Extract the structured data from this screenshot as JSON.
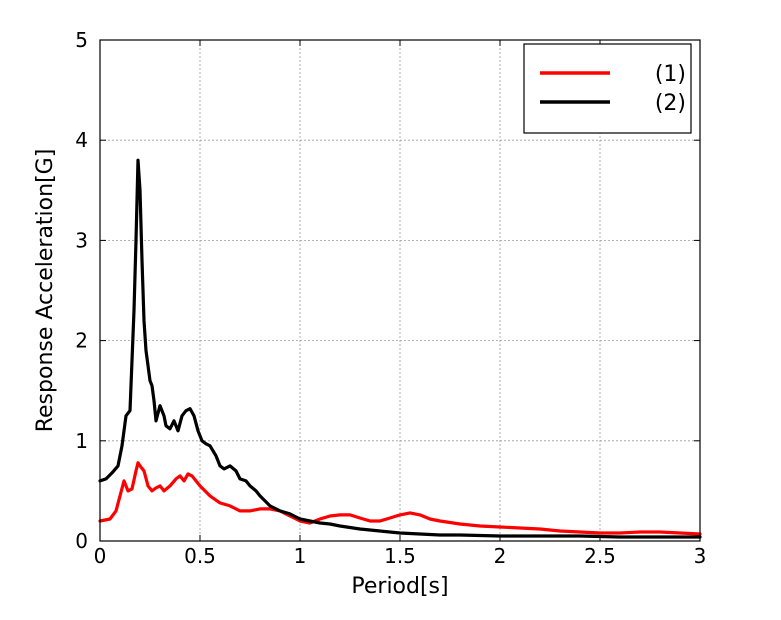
{
  "chart_data": {
    "type": "line",
    "title": "",
    "xlabel": "Period[s]",
    "ylabel": "Response Acceleration[G]",
    "xlim": [
      0,
      3
    ],
    "ylim": [
      0,
      5
    ],
    "xticks": [
      0,
      0.5,
      1,
      1.5,
      2,
      2.5,
      3
    ],
    "xtick_labels": [
      "0",
      "0.5",
      "1",
      "1.5",
      "2",
      "2.5",
      "3"
    ],
    "yticks": [
      0,
      1,
      2,
      3,
      4,
      5
    ],
    "ytick_labels": [
      "0",
      "1",
      "2",
      "3",
      "4",
      "5"
    ],
    "grid": true,
    "legend_position": "top-right",
    "series": [
      {
        "name": "(1)",
        "color": "#ff0000",
        "x": [
          0,
          0.05,
          0.08,
          0.1,
          0.12,
          0.14,
          0.16,
          0.18,
          0.19,
          0.2,
          0.22,
          0.24,
          0.26,
          0.28,
          0.3,
          0.32,
          0.35,
          0.38,
          0.4,
          0.42,
          0.44,
          0.46,
          0.48,
          0.5,
          0.55,
          0.6,
          0.65,
          0.7,
          0.75,
          0.8,
          0.85,
          0.9,
          0.95,
          1.0,
          1.05,
          1.1,
          1.15,
          1.2,
          1.25,
          1.3,
          1.35,
          1.4,
          1.45,
          1.5,
          1.55,
          1.6,
          1.65,
          1.7,
          1.8,
          1.9,
          2.0,
          2.1,
          2.2,
          2.3,
          2.4,
          2.5,
          2.6,
          2.7,
          2.8,
          2.9,
          3.0
        ],
        "y": [
          0.2,
          0.22,
          0.3,
          0.45,
          0.6,
          0.5,
          0.52,
          0.7,
          0.78,
          0.75,
          0.7,
          0.55,
          0.5,
          0.53,
          0.55,
          0.5,
          0.55,
          0.62,
          0.65,
          0.6,
          0.67,
          0.65,
          0.6,
          0.55,
          0.45,
          0.38,
          0.35,
          0.3,
          0.3,
          0.32,
          0.32,
          0.3,
          0.25,
          0.2,
          0.18,
          0.22,
          0.25,
          0.26,
          0.26,
          0.23,
          0.2,
          0.2,
          0.23,
          0.26,
          0.28,
          0.26,
          0.22,
          0.2,
          0.17,
          0.15,
          0.14,
          0.13,
          0.12,
          0.1,
          0.09,
          0.08,
          0.08,
          0.09,
          0.09,
          0.08,
          0.07
        ]
      },
      {
        "name": "(2)",
        "color": "#000000",
        "x": [
          0,
          0.03,
          0.06,
          0.09,
          0.11,
          0.13,
          0.15,
          0.16,
          0.17,
          0.18,
          0.19,
          0.2,
          0.21,
          0.22,
          0.23,
          0.24,
          0.25,
          0.26,
          0.27,
          0.28,
          0.3,
          0.32,
          0.33,
          0.35,
          0.37,
          0.39,
          0.41,
          0.43,
          0.45,
          0.47,
          0.49,
          0.51,
          0.53,
          0.55,
          0.58,
          0.6,
          0.62,
          0.65,
          0.68,
          0.7,
          0.73,
          0.75,
          0.78,
          0.8,
          0.85,
          0.9,
          0.95,
          1.0,
          1.05,
          1.1,
          1.15,
          1.2,
          1.3,
          1.4,
          1.5,
          1.6,
          1.7,
          1.8,
          2.0,
          2.2,
          2.4,
          2.6,
          2.8,
          3.0
        ],
        "y": [
          0.6,
          0.62,
          0.68,
          0.75,
          0.95,
          1.25,
          1.3,
          1.8,
          2.3,
          3.0,
          3.8,
          3.5,
          2.8,
          2.2,
          1.9,
          1.75,
          1.6,
          1.55,
          1.4,
          1.2,
          1.35,
          1.25,
          1.15,
          1.12,
          1.2,
          1.1,
          1.25,
          1.3,
          1.32,
          1.25,
          1.1,
          1.0,
          0.97,
          0.95,
          0.85,
          0.75,
          0.72,
          0.75,
          0.7,
          0.62,
          0.6,
          0.55,
          0.5,
          0.45,
          0.35,
          0.3,
          0.27,
          0.22,
          0.2,
          0.18,
          0.17,
          0.15,
          0.12,
          0.1,
          0.08,
          0.07,
          0.06,
          0.06,
          0.05,
          0.05,
          0.05,
          0.04,
          0.04,
          0.04
        ]
      }
    ]
  }
}
